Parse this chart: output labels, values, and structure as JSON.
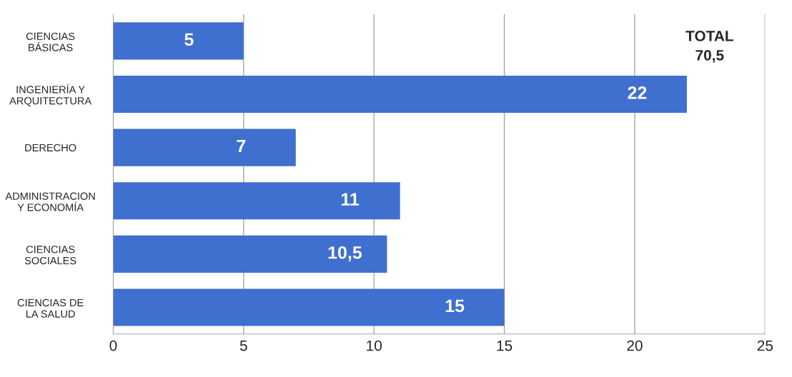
{
  "chart_data": {
    "type": "bar",
    "orientation": "horizontal",
    "categories": [
      "CIENCIAS\nBÁSICAS",
      "INGENIERÍA Y\nARQUITECTURA",
      "DERECHO",
      "ADMINISTRACION\nY ECONOMÍA",
      "CIENCIAS\nSOCIALES",
      "CIENCIAS DE\nLA SALUD"
    ],
    "values": [
      5,
      22,
      7,
      11,
      10.5,
      15
    ],
    "value_labels": [
      "5",
      "22",
      "7",
      "11",
      "10,5",
      "15"
    ],
    "color": "#3f6fcf",
    "xlim": [
      0,
      25
    ],
    "xticks": [
      0,
      5,
      10,
      15,
      20,
      25
    ],
    "grid": "x",
    "annotations": [
      "TOTAL\n70,5"
    ]
  }
}
